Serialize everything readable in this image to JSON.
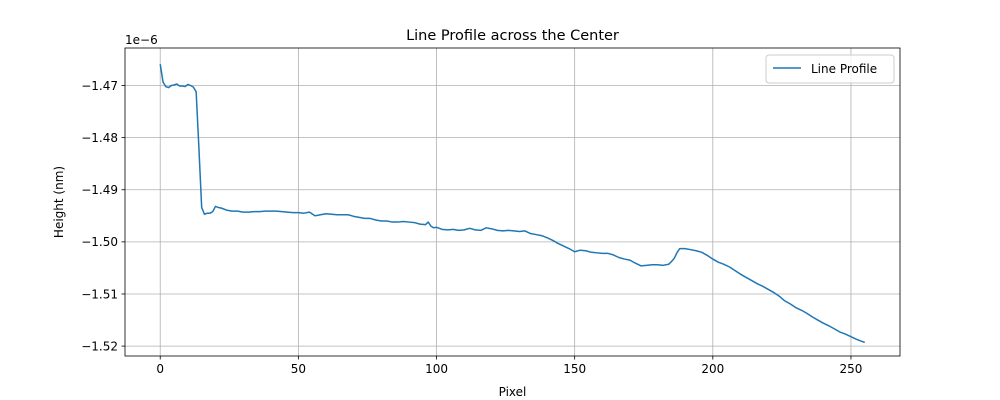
{
  "chart_data": {
    "type": "line",
    "title": "Line Profile across the Center",
    "xlabel": "Pixel",
    "ylabel": "Height (nm)",
    "y_offset_label": "1e−6",
    "xlim": [
      -12.75,
      267.75
    ],
    "ylim": [
      -1.5219e-06,
      -1.4628e-06
    ],
    "grid": true,
    "legend_position": "upper right",
    "x_ticks": [
      0,
      50,
      100,
      150,
      200,
      250
    ],
    "x_tick_labels": [
      "0",
      "50",
      "100",
      "150",
      "200",
      "250"
    ],
    "y_ticks": [
      -1.52e-06,
      -1.51e-06,
      -1.5e-06,
      -1.49e-06,
      -1.48e-06,
      -1.47e-06
    ],
    "y_tick_labels": [
      "−1.52",
      "−1.51",
      "−1.50",
      "−1.49",
      "−1.48",
      "−1.47"
    ],
    "series": [
      {
        "name": "Line Profile",
        "color": "#1f77b4",
        "x": [
          0,
          1,
          2,
          3,
          4,
          5,
          6,
          7,
          8,
          9,
          10,
          11,
          12,
          13,
          14,
          15,
          16,
          17,
          18,
          19,
          20,
          21,
          22,
          24,
          26,
          28,
          30,
          32,
          34,
          36,
          38,
          40,
          42,
          44,
          46,
          48,
          50,
          52,
          54,
          56,
          58,
          60,
          62,
          64,
          66,
          68,
          70,
          72,
          74,
          76,
          78,
          80,
          82,
          84,
          86,
          88,
          90,
          92,
          94,
          96,
          97,
          98,
          99,
          100,
          102,
          104,
          106,
          108,
          110,
          112,
          114,
          116,
          118,
          120,
          122,
          124,
          126,
          128,
          130,
          132,
          134,
          136,
          138,
          140,
          142,
          144,
          146,
          148,
          150,
          152,
          154,
          156,
          158,
          160,
          162,
          164,
          166,
          168,
          170,
          172,
          174,
          176,
          178,
          180,
          182,
          184,
          185,
          186,
          187,
          188,
          190,
          192,
          194,
          196,
          198,
          200,
          202,
          204,
          206,
          208,
          210,
          212,
          214,
          216,
          218,
          220,
          222,
          224,
          226,
          228,
          230,
          232,
          234,
          236,
          238,
          240,
          242,
          244,
          246,
          248,
          250,
          252,
          254,
          255
        ],
        "y": [
          -1.4659e-06,
          -1.4693e-06,
          -1.4702e-06,
          -1.4704e-06,
          -1.47e-06,
          -1.4699e-06,
          -1.4697e-06,
          -1.4701e-06,
          -1.4701e-06,
          -1.4702e-06,
          -1.4698e-06,
          -1.47e-06,
          -1.4703e-06,
          -1.4712e-06,
          -1.482e-06,
          -1.4934e-06,
          -1.4947e-06,
          -1.4945e-06,
          -1.4945e-06,
          -1.4942e-06,
          -1.4932e-06,
          -1.4934e-06,
          -1.4935e-06,
          -1.4939e-06,
          -1.4941e-06,
          -1.4941e-06,
          -1.4943e-06,
          -1.4943e-06,
          -1.4942e-06,
          -1.4942e-06,
          -1.4941e-06,
          -1.4941e-06,
          -1.4941e-06,
          -1.4942e-06,
          -1.4943e-06,
          -1.4944e-06,
          -1.4944e-06,
          -1.4945e-06,
          -1.4943e-06,
          -1.495e-06,
          -1.4948e-06,
          -1.4946e-06,
          -1.4947e-06,
          -1.4948e-06,
          -1.4948e-06,
          -1.4948e-06,
          -1.4951e-06,
          -1.4953e-06,
          -1.4955e-06,
          -1.4955e-06,
          -1.4958e-06,
          -1.496e-06,
          -1.496e-06,
          -1.4962e-06,
          -1.4962e-06,
          -1.4961e-06,
          -1.4962e-06,
          -1.4963e-06,
          -1.4966e-06,
          -1.4967e-06,
          -1.4962e-06,
          -1.497e-06,
          -1.4973e-06,
          -1.4972e-06,
          -1.4976e-06,
          -1.4977e-06,
          -1.4976e-06,
          -1.4978e-06,
          -1.4977e-06,
          -1.4974e-06,
          -1.4977e-06,
          -1.4978e-06,
          -1.4973e-06,
          -1.4975e-06,
          -1.4978e-06,
          -1.4979e-06,
          -1.4978e-06,
          -1.4979e-06,
          -1.498e-06,
          -1.4979e-06,
          -1.4984e-06,
          -1.4986e-06,
          -1.4988e-06,
          -1.4992e-06,
          -1.4997e-06,
          -1.5003e-06,
          -1.5008e-06,
          -1.5013e-06,
          -1.5019e-06,
          -1.5016e-06,
          -1.5017e-06,
          -1.502e-06,
          -1.5021e-06,
          -1.5022e-06,
          -1.5022e-06,
          -1.5025e-06,
          -1.503e-06,
          -1.5033e-06,
          -1.5035e-06,
          -1.5041e-06,
          -1.5046e-06,
          -1.5045e-06,
          -1.5044e-06,
          -1.5044e-06,
          -1.5045e-06,
          -1.5043e-06,
          -1.5038e-06,
          -1.5032e-06,
          -1.5021e-06,
          -1.5013e-06,
          -1.5013e-06,
          -1.5015e-06,
          -1.5017e-06,
          -1.502e-06,
          -1.5026e-06,
          -1.5033e-06,
          -1.5039e-06,
          -1.5043e-06,
          -1.5048e-06,
          -1.5055e-06,
          -1.5062e-06,
          -1.5068e-06,
          -1.5074e-06,
          -1.508e-06,
          -1.5085e-06,
          -1.5091e-06,
          -1.5097e-06,
          -1.5104e-06,
          -1.5113e-06,
          -1.5119e-06,
          -1.5126e-06,
          -1.5131e-06,
          -1.5137e-06,
          -1.5144e-06,
          -1.515e-06,
          -1.5156e-06,
          -1.5161e-06,
          -1.5167e-06,
          -1.5173e-06,
          -1.5177e-06,
          -1.5182e-06,
          -1.5187e-06,
          -1.5191e-06,
          -1.5193e-06
        ]
      }
    ]
  }
}
